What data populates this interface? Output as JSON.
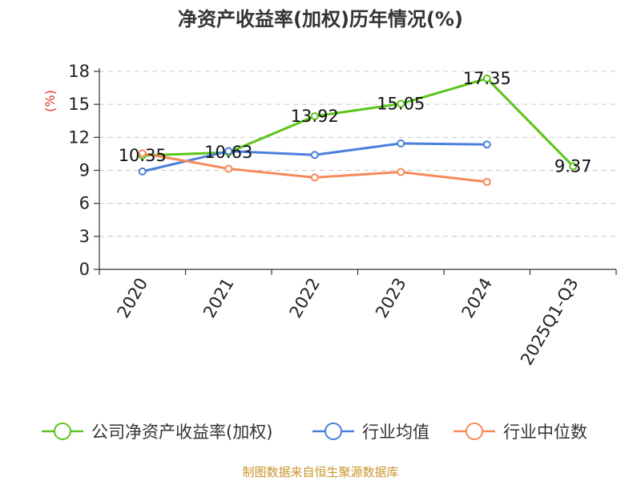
{
  "chart_data": {
    "type": "line",
    "title": "净资产收益率(加权)历年情况(%)",
    "ylabel": "(%)",
    "categories": [
      "2020",
      "2021",
      "2022",
      "2023",
      "2024",
      "2025Q1-Q3"
    ],
    "ylim": [
      0,
      18
    ],
    "yticks": [
      0,
      3,
      6,
      9,
      12,
      15,
      18
    ],
    "grid": true,
    "legend_position": "bottom",
    "series": [
      {
        "name": "公司净资产收益率(加权)",
        "color": "#5cc41b",
        "values": [
          10.35,
          10.63,
          13.92,
          15.05,
          17.35,
          9.37
        ],
        "labels": [
          "10.35",
          "10.63",
          "13.92",
          "15.05",
          "17.35",
          "9.37"
        ]
      },
      {
        "name": "行业均值",
        "color": "#4b7fdc",
        "values": [
          8.9,
          10.75,
          10.4,
          11.45,
          11.35,
          null
        ]
      },
      {
        "name": "行业中位数",
        "color": "#f58a5a",
        "values": [
          10.55,
          9.15,
          8.35,
          8.85,
          7.95,
          null
        ]
      }
    ]
  },
  "source": "制图数据来自恒生聚源数据库"
}
